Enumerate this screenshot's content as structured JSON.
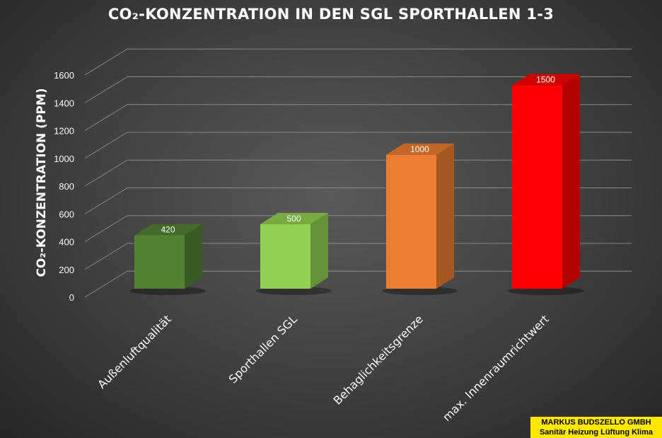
{
  "chart_data": {
    "type": "bar",
    "title": "CO₂-KONZENTRATION IN DEN SGL SPORTHALLEN 1-3",
    "ylabel": "CO₂-KONZENTRATION (PPM)",
    "xlabel": "",
    "ylim": [
      0,
      1600
    ],
    "yticks": [
      "0",
      "200",
      "400",
      "600",
      "800",
      "1000",
      "1200",
      "1400",
      "1600"
    ],
    "categories": [
      "Außenluftqualität",
      "Sporthallen SGL",
      "Behaglichkeitsgrenze",
      "max. Innenraumrichtwert"
    ],
    "values": [
      420,
      500,
      1000,
      1500
    ],
    "data_labels": [
      "420",
      "500",
      "1000",
      "1500"
    ],
    "colors": [
      "#548235",
      "#92d050",
      "#ed7d31",
      "#ff0000"
    ],
    "grid": true,
    "legend": "none",
    "style": "3d-column"
  },
  "watermark": {
    "line1": "MARKUS BUDSZELLO GMBH",
    "line2": "Sanitär Heizung Lüftung Klima",
    "background": "#ffe800"
  }
}
